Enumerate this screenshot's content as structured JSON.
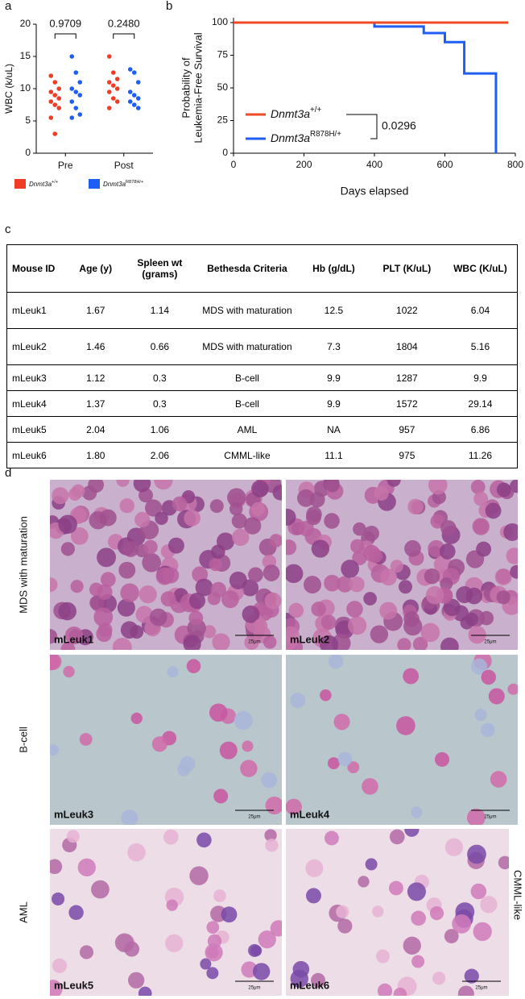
{
  "panels": [
    "a",
    "b",
    "c",
    "d"
  ],
  "chart_data": [
    {
      "type": "strip",
      "ylabel": "WBC (k/uL)",
      "categories": [
        "Pre",
        "Post"
      ],
      "series": [
        {
          "name": "Dnmt3a",
          "genotype": "+/+",
          "color": "#f03c24",
          "values": [
            [
              12,
              11,
              10,
              9.5,
              9,
              8.5,
              8,
              7.5,
              7,
              5.5,
              3
            ],
            [
              15,
              12.5,
              11.5,
              11,
              10.5,
              10,
              9.5,
              8.5,
              8,
              7
            ]
          ]
        },
        {
          "name": "Dnmt3a",
          "genotype": "R878H/+",
          "color": "#1f5ef5",
          "values": [
            [
              15,
              12.5,
              11,
              10,
              9.5,
              9,
              8,
              7,
              6,
              5.5
            ],
            [
              13,
              12.5,
              11,
              9.5,
              9,
              8.5,
              8,
              7.5,
              7
            ]
          ]
        }
      ],
      "ylim": [
        0,
        20
      ],
      "yticks": [
        0,
        5,
        10,
        15,
        20
      ],
      "annotations": [
        "0.9709",
        "0.2480"
      ]
    },
    {
      "type": "survival",
      "ylabel": [
        "Probability of",
        "Leukemia-Free Survival"
      ],
      "xlabel": "Days elapsed",
      "series": [
        {
          "name": "Dnmt3a",
          "genotype": "+/+",
          "color": "#f04a24",
          "x": [
            0,
            780
          ],
          "y": [
            100,
            100
          ]
        },
        {
          "name": "Dnmt3a",
          "genotype": "R878H/+",
          "color": "#1f5ef5",
          "x": [
            265,
            400,
            540,
            600,
            655,
            745
          ],
          "y": [
            100,
            97,
            92,
            85,
            61,
            0
          ]
        }
      ],
      "xlim": [
        0,
        800
      ],
      "xticks": [
        0,
        200,
        400,
        600,
        800
      ],
      "ylim": [
        0,
        100
      ],
      "yticks": [
        0,
        25,
        50,
        75,
        100
      ],
      "annotation": "0.0296"
    }
  ],
  "table": {
    "header": [
      "Mouse ID",
      "Age (y)",
      "Spleen wt (grams)",
      "Bethesda Criteria",
      "Hb (g/dL)",
      "PLT (K/uL)",
      "WBC (K/uL)"
    ],
    "rows": [
      [
        "mLeuk1",
        "1.67",
        "1.14",
        "MDS with maturation",
        "12.5",
        "1022",
        "6.04"
      ],
      [
        "mLeuk2",
        "1.46",
        "0.66",
        "MDS with maturation",
        "7.3",
        "1804",
        "5.16"
      ],
      [
        "mLeuk3",
        "1.12",
        "0.3",
        "B-cell",
        "9.9",
        "1287",
        "9.9"
      ],
      [
        "mLeuk4",
        "1.37",
        "0.3",
        "B-cell",
        "9.9",
        "1572",
        "29.14"
      ],
      [
        "mLeuk5",
        "2.04",
        "1.06",
        "AML",
        "NA",
        "957",
        "6.86"
      ],
      [
        "mLeuk6",
        "1.80",
        "2.06",
        "CMML-like",
        "11.1",
        "975",
        "11.26"
      ]
    ]
  },
  "micrographs": {
    "scale": "25μm",
    "rows": [
      {
        "label": "MDS with maturation",
        "images": [
          "mLeuk1",
          "mLeuk2"
        ]
      },
      {
        "label": "B-cell",
        "images": [
          "mLeuk3",
          "mLeuk4"
        ]
      },
      {
        "label": "AML",
        "images": [
          "mLeuk5",
          "mLeuk6"
        ]
      }
    ],
    "side_label": "CMML-like"
  }
}
